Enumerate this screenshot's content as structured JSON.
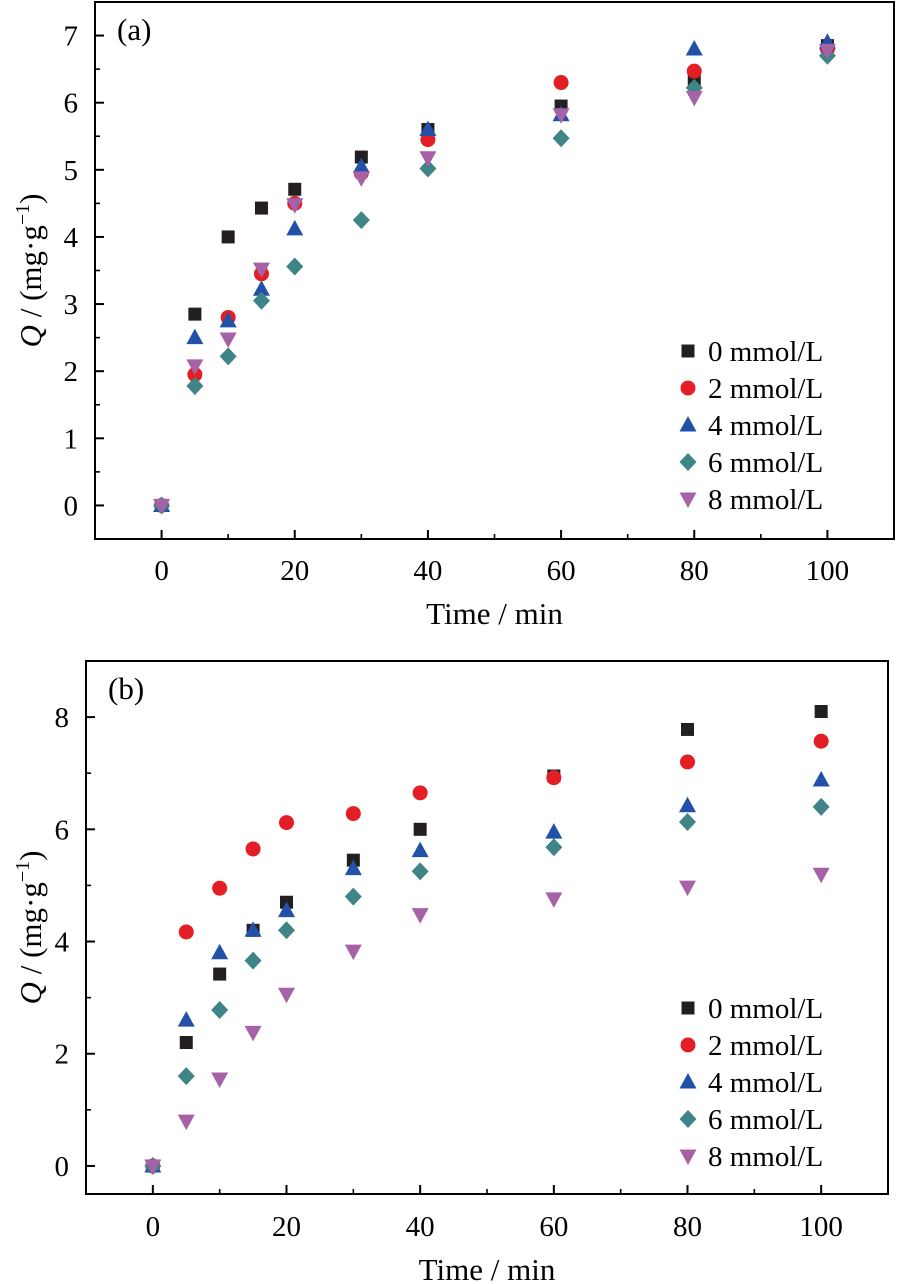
{
  "chart_data": [
    {
      "type": "scatter",
      "panel_label": "(a)",
      "xlabel": "Time / min",
      "ylabel_main": "Q",
      "ylabel_rest": " / (mg·g",
      "ylabel_sup": "−1",
      "ylabel_close": ")",
      "xlim": [
        -10,
        110
      ],
      "ylim": [
        -0.5,
        7.5
      ],
      "xticks": [
        0,
        20,
        40,
        60,
        80,
        100
      ],
      "yticks": [
        0,
        1,
        2,
        3,
        4,
        5,
        6,
        7
      ],
      "legend_position": "bottom-right",
      "x": [
        0,
        5,
        10,
        15,
        20,
        30,
        40,
        60,
        80,
        100
      ],
      "series": [
        {
          "name": "0 mmol/L",
          "marker": "square",
          "color": "#231f20",
          "values": [
            0,
            2.85,
            4.0,
            4.43,
            4.71,
            5.19,
            5.6,
            5.95,
            6.35,
            6.85
          ]
        },
        {
          "name": "2 mmol/L",
          "marker": "circle",
          "color": "#e31e24",
          "values": [
            0,
            1.95,
            2.8,
            3.45,
            4.5,
            4.95,
            5.45,
            6.3,
            6.47,
            6.8
          ]
        },
        {
          "name": "4 mmol/L",
          "marker": "triangle-up",
          "color": "#2351a8",
          "values": [
            0,
            2.5,
            2.75,
            3.22,
            4.12,
            5.05,
            5.6,
            5.82,
            6.8,
            6.9
          ]
        },
        {
          "name": "6 mmol/L",
          "marker": "diamond",
          "color": "#3f8486",
          "values": [
            0,
            1.78,
            2.22,
            3.05,
            3.56,
            4.25,
            5.02,
            5.47,
            6.22,
            6.7
          ]
        },
        {
          "name": "8 mmol/L",
          "marker": "triangle-down",
          "color": "#a562a7",
          "values": [
            0,
            2.08,
            2.48,
            3.52,
            4.48,
            4.88,
            5.18,
            5.82,
            6.08,
            6.78
          ]
        }
      ]
    },
    {
      "type": "scatter",
      "panel_label": "(b)",
      "xlabel": "Time / min",
      "ylabel_main": "Q",
      "ylabel_rest": " / (mg·g",
      "ylabel_sup": "−1",
      "ylabel_close": ")",
      "xlim": [
        -10,
        110
      ],
      "ylim": [
        -0.5,
        9.0
      ],
      "xticks": [
        0,
        20,
        40,
        60,
        80,
        100
      ],
      "yticks": [
        0,
        2,
        4,
        6,
        8
      ],
      "legend_position": "bottom-right",
      "x": [
        0,
        5,
        10,
        15,
        20,
        30,
        40,
        60,
        80,
        100
      ],
      "series": [
        {
          "name": "0 mmol/L",
          "marker": "square",
          "color": "#231f20",
          "values": [
            0,
            2.2,
            3.42,
            4.2,
            4.7,
            5.45,
            6.0,
            6.95,
            7.78,
            8.1
          ]
        },
        {
          "name": "2 mmol/L",
          "marker": "circle",
          "color": "#e31e24",
          "values": [
            0,
            4.17,
            4.95,
            5.65,
            6.12,
            6.28,
            6.65,
            6.92,
            7.2,
            7.57
          ]
        },
        {
          "name": "4 mmol/L",
          "marker": "triangle-up",
          "color": "#2351a8",
          "values": [
            0,
            2.6,
            3.8,
            4.2,
            4.55,
            5.3,
            5.62,
            5.95,
            6.42,
            6.88
          ]
        },
        {
          "name": "6 mmol/L",
          "marker": "diamond",
          "color": "#3f8486",
          "values": [
            0,
            1.6,
            2.78,
            3.66,
            4.2,
            4.8,
            5.25,
            5.68,
            6.13,
            6.4
          ]
        },
        {
          "name": "8 mmol/L",
          "marker": "triangle-down",
          "color": "#a562a7",
          "values": [
            0,
            0.8,
            1.55,
            2.38,
            3.06,
            3.83,
            4.48,
            4.76,
            4.97,
            5.2
          ]
        }
      ]
    }
  ]
}
